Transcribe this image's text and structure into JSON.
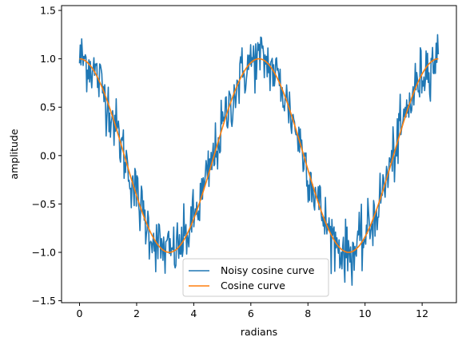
{
  "chart_data": {
    "type": "line",
    "title": "",
    "xlabel": "radians",
    "ylabel": "amplitude",
    "xlim": [
      -0.63,
      13.2
    ],
    "ylim": [
      -1.52,
      1.55
    ],
    "xticks": [
      0,
      2,
      4,
      6,
      8,
      10,
      12
    ],
    "yticks": [
      -1.5,
      -1.0,
      -0.5,
      0.0,
      0.5,
      1.0,
      1.5
    ],
    "xtick_labels": [
      "0",
      "2",
      "4",
      "6",
      "8",
      "10",
      "12"
    ],
    "ytick_labels": [
      "−1.5",
      "−1.0",
      "−0.5",
      "0.0",
      "0.5",
      "1.0",
      "1.5"
    ],
    "grid": false,
    "legend_position": "lower-center",
    "series": [
      {
        "name": "Noisy cosine curve",
        "color": "#1f77b4",
        "function": "cos(x) + noise",
        "x_range": [
          0,
          12.566
        ],
        "points": 500,
        "noise_amplitude": 0.15
      },
      {
        "name": "Cosine curve",
        "color": "#ff7f0e",
        "function": "cos(x)",
        "x_range": [
          0,
          12.566
        ],
        "points": 500
      }
    ]
  }
}
